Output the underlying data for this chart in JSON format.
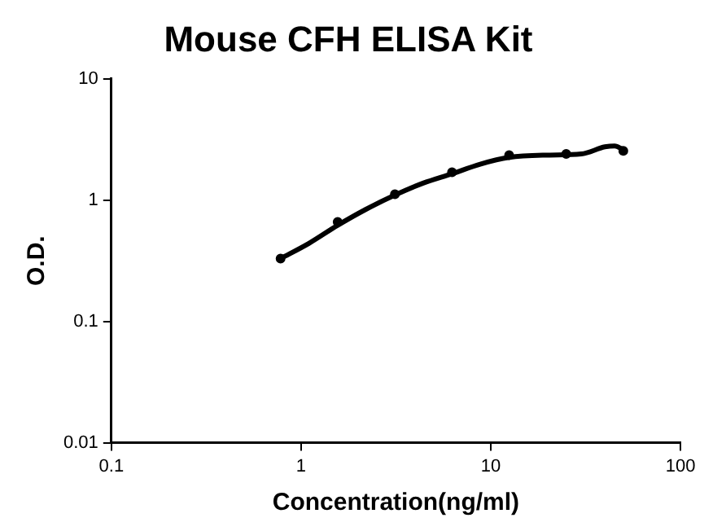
{
  "chart_data": {
    "type": "scatter",
    "title": "Mouse CFH ELISA Kit",
    "xlabel": "Concentration(ng/ml)",
    "ylabel": "O.D.",
    "log": "xy",
    "grid": false,
    "legend": false,
    "marker": "circle",
    "xlim": [
      0.1,
      100
    ],
    "xticks": [
      0.1,
      1,
      10,
      100
    ],
    "ylim": [
      0.01,
      10
    ],
    "yticks": [
      0.01,
      0.1,
      1,
      10
    ],
    "series": [
      {
        "type": "scatter",
        "color": "#000000",
        "x": [
          0.78,
          1.56,
          3.125,
          6.25,
          12.5,
          25,
          50
        ],
        "values": [
          0.33,
          0.66,
          1.12,
          1.7,
          2.35,
          2.4,
          2.55
        ]
      },
      {
        "type": "line",
        "color": "#000000",
        "marker": "none",
        "x": [
          0.78,
          1.1,
          1.56,
          2.2,
          3.125,
          4.4,
          6.25,
          8.8,
          12.5,
          20,
          30,
          40,
          45,
          50
        ],
        "values": [
          0.33,
          0.44,
          0.62,
          0.84,
          1.1,
          1.38,
          1.65,
          1.98,
          2.25,
          2.35,
          2.4,
          2.75,
          2.8,
          2.6
        ]
      }
    ]
  }
}
